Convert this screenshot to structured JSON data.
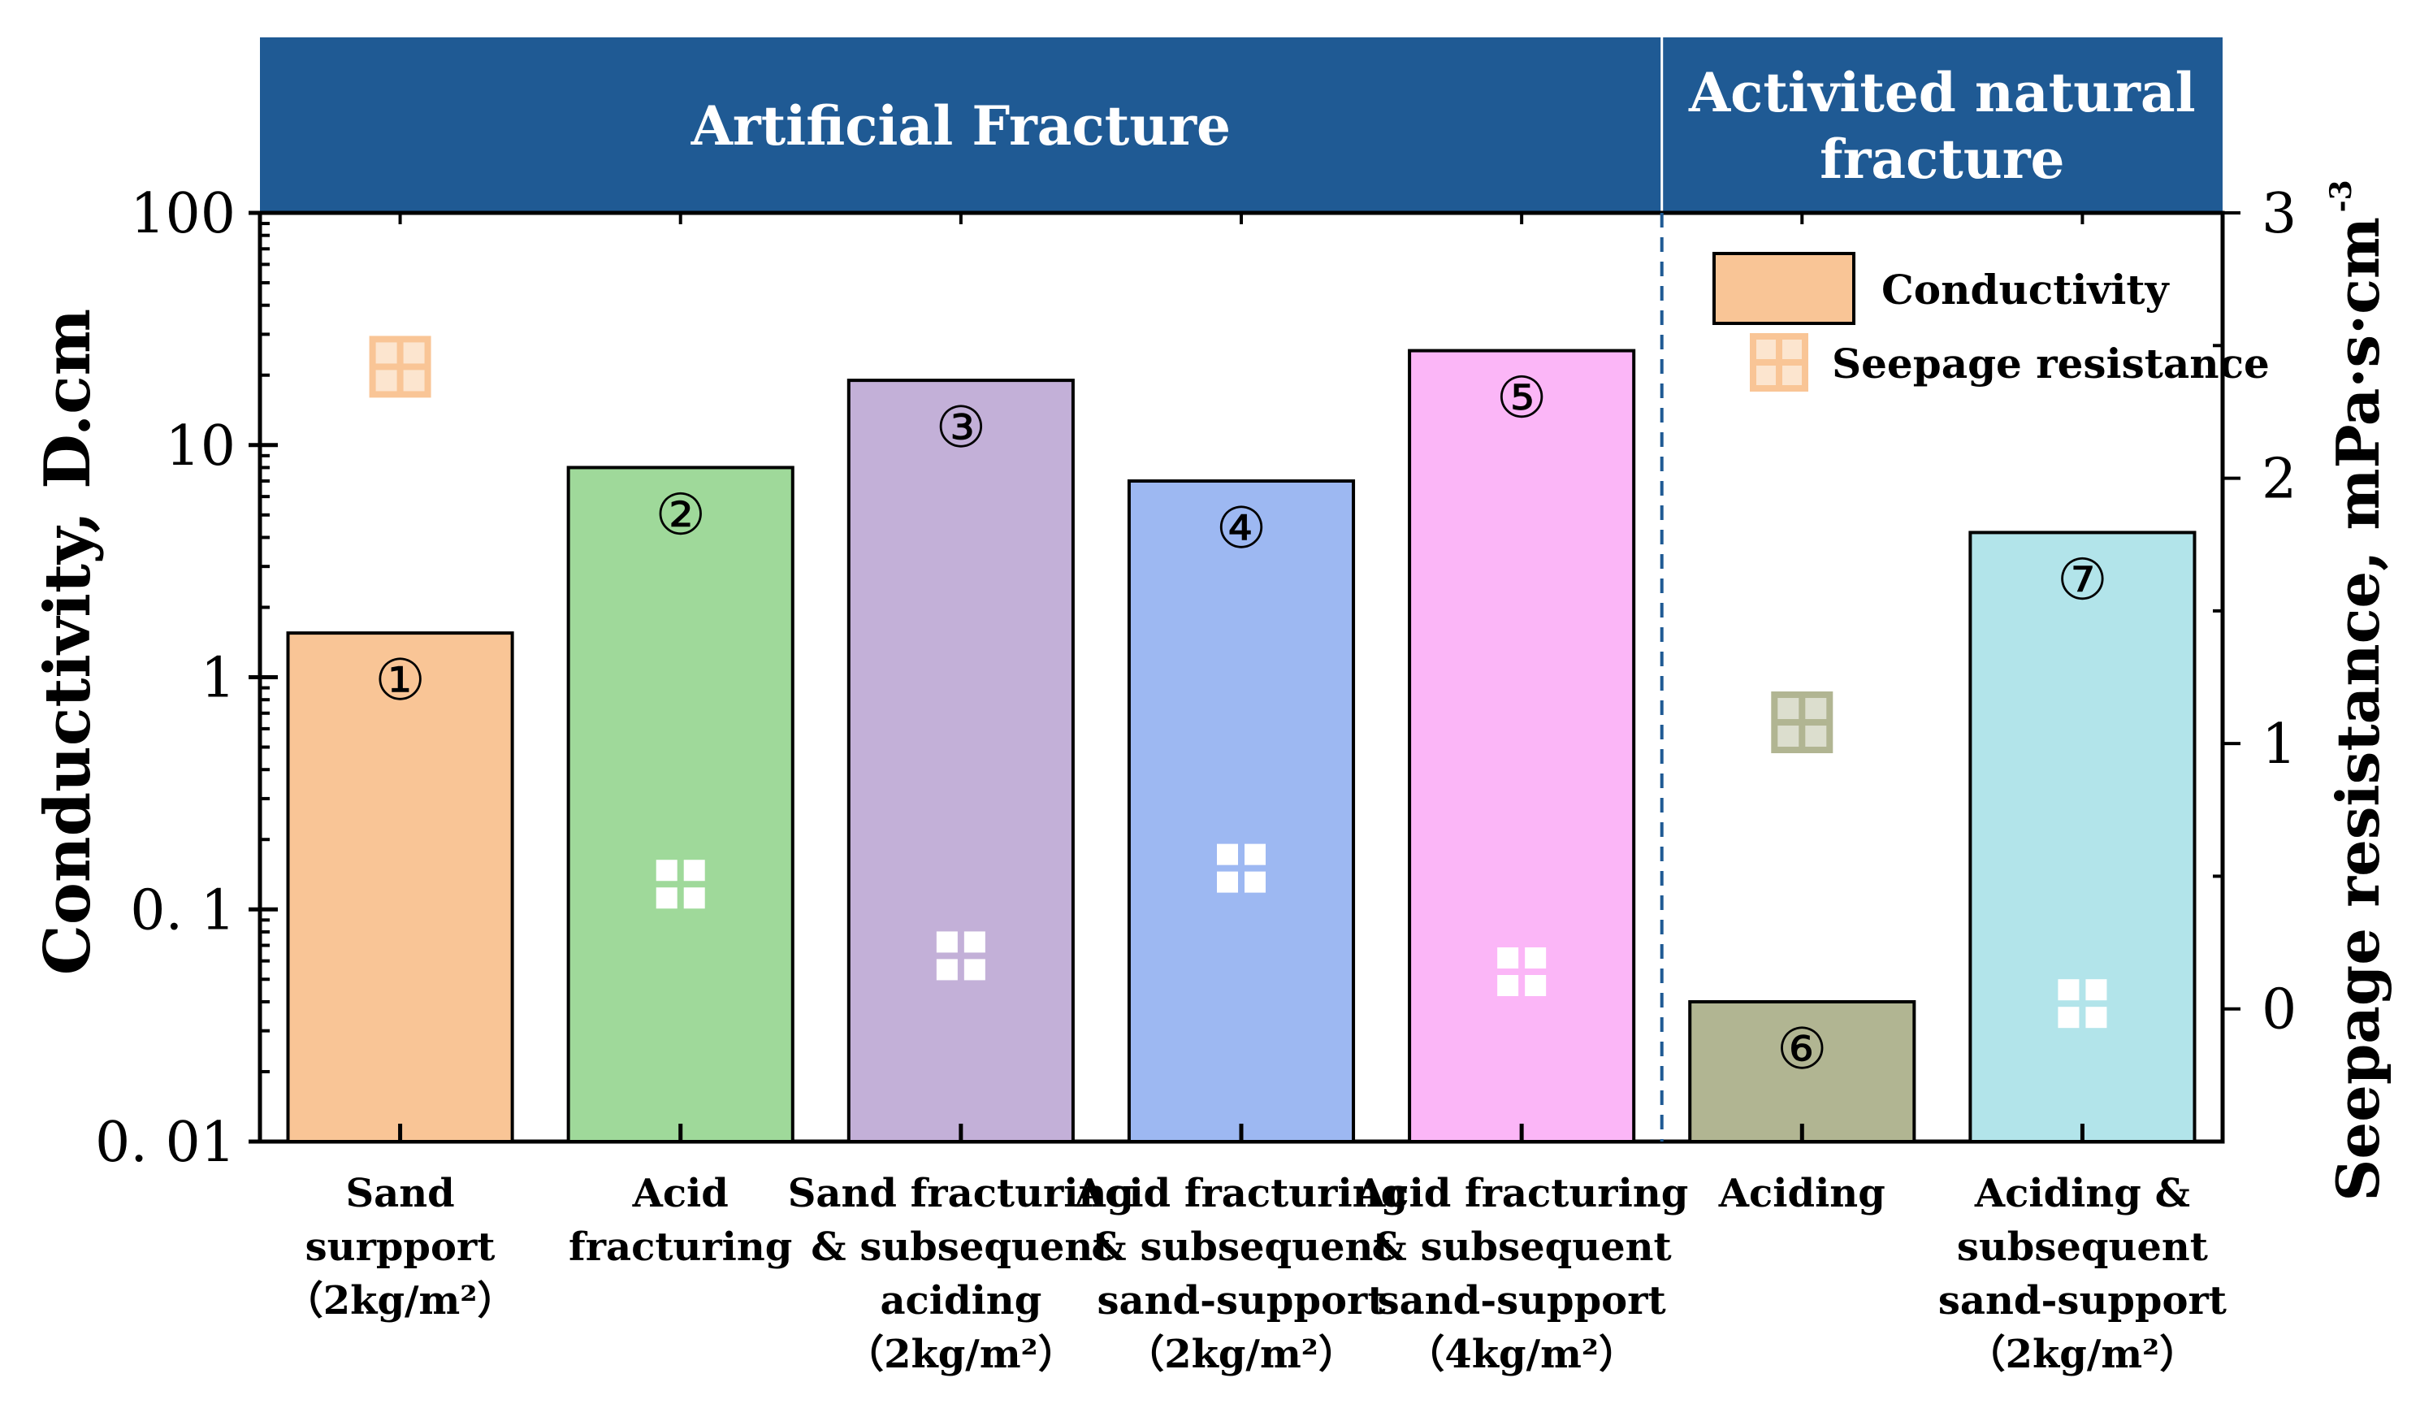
{
  "chart_data": {
    "type": "bar",
    "y_scale": "log",
    "y2_scale": "linear",
    "ylim": [
      0.01,
      100
    ],
    "y2lim": [
      -0.5,
      3
    ],
    "ylabel": "Conductivity, D.cm",
    "y2label": "Seepage resistance, mPa·s·cm",
    "y2label_sup": "-3",
    "y_ticks": [
      {
        "value": 100,
        "label": "100"
      },
      {
        "value": 10,
        "label": "10"
      },
      {
        "value": 1,
        "label": "1"
      },
      {
        "value": 0.1,
        "label": "0. 1"
      },
      {
        "value": 0.01,
        "label": "0. 01"
      }
    ],
    "y2_ticks": [
      {
        "value": 3,
        "label": "3"
      },
      {
        "value": 2,
        "label": "2"
      },
      {
        "value": 1,
        "label": "1"
      },
      {
        "value": 0,
        "label": "0"
      }
    ],
    "groups": [
      {
        "label": "Artificial Fracture",
        "label_lines": [
          "Artificial Fracture"
        ],
        "from": 0,
        "to": 4
      },
      {
        "label": "Activited natural fracture",
        "label_lines": [
          "Activited natural",
          "fracture"
        ],
        "from": 5,
        "to": 6
      }
    ],
    "categories": [
      {
        "lines": [
          "Sand",
          "surpport",
          "（2kg/m²）"
        ]
      },
      {
        "lines": [
          "Acid",
          "fracturing"
        ]
      },
      {
        "lines": [
          "Sand fracturing",
          "& subsequent",
          "aciding",
          "（2kg/m²）"
        ]
      },
      {
        "lines": [
          "Acid fracturing",
          "& subsequent",
          "sand-support",
          "（2kg/m²）"
        ]
      },
      {
        "lines": [
          "Acid fracturing",
          "& subsequent",
          "sand-support",
          "（4kg/m²）"
        ]
      },
      {
        "lines": [
          "Aciding"
        ]
      },
      {
        "lines": [
          "Aciding &",
          "subsequent",
          "sand-support",
          "（2kg/m²）"
        ]
      }
    ],
    "series": [
      {
        "name": "Conductivity",
        "axis": "left",
        "values": [
          1.55,
          8.0,
          19.0,
          7.0,
          25.5,
          0.04,
          4.2
        ],
        "bar_labels": [
          "①",
          "②",
          "③",
          "④",
          "⑤",
          "⑥",
          "⑦"
        ],
        "colors": [
          "#f9c596",
          "#9fd99a",
          "#c3b0d8",
          "#9db8f2",
          "#fbb6f7",
          "#b1b592",
          "#b2e4ea"
        ]
      },
      {
        "name": "Seepage resistance",
        "axis": "right",
        "values": [
          2.42,
          0.47,
          0.2,
          0.53,
          0.14,
          1.08,
          0.02
        ],
        "colors": [
          "#f9c596",
          "#ffffff",
          "#ffffff",
          "#ffffff",
          "#ffffff",
          "#b1b592",
          "#ffffff"
        ]
      }
    ],
    "legend": {
      "position": "top-right",
      "entries": [
        {
          "label": "Conductivity",
          "kind": "bar",
          "color": "#f9c596"
        },
        {
          "label": "Seepage resistance",
          "kind": "marker",
          "color": "#f9c596"
        }
      ]
    },
    "colors": {
      "header": "#1f5a94",
      "header_text": "#ffffff",
      "axis": "#000000",
      "divider": "#1f5a94"
    }
  }
}
